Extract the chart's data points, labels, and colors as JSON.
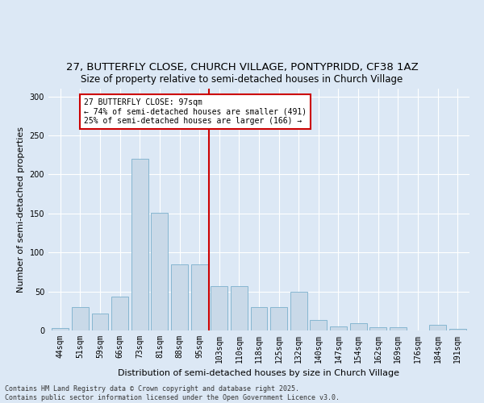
{
  "title": "27, BUTTERFLY CLOSE, CHURCH VILLAGE, PONTYPRIDD, CF38 1AZ",
  "subtitle": "Size of property relative to semi-detached houses in Church Village",
  "xlabel": "Distribution of semi-detached houses by size in Church Village",
  "ylabel": "Number of semi-detached properties",
  "categories": [
    "44sqm",
    "51sqm",
    "59sqm",
    "66sqm",
    "73sqm",
    "81sqm",
    "88sqm",
    "95sqm",
    "103sqm",
    "110sqm",
    "118sqm",
    "125sqm",
    "132sqm",
    "140sqm",
    "147sqm",
    "154sqm",
    "162sqm",
    "169sqm",
    "176sqm",
    "184sqm",
    "191sqm"
  ],
  "values": [
    3,
    30,
    22,
    43,
    220,
    151,
    85,
    85,
    57,
    57,
    30,
    30,
    50,
    13,
    5,
    9,
    4,
    4,
    0,
    7,
    2
  ],
  "bar_color": "#c9d9e8",
  "bar_edge_color": "#7ab0cc",
  "marker_line_color": "#cc0000",
  "marker_label": "27 BUTTERFLY CLOSE: 97sqm",
  "annotation_line1": "← 74% of semi-detached houses are smaller (491)",
  "annotation_line2": "25% of semi-detached houses are larger (166) →",
  "annotation_box_color": "#ffffff",
  "annotation_box_edge": "#cc0000",
  "footer": "Contains HM Land Registry data © Crown copyright and database right 2025.\nContains public sector information licensed under the Open Government Licence v3.0.",
  "bg_color": "#dce8f5",
  "plot_bg_color": "#dce8f5",
  "ylim": [
    0,
    310
  ],
  "yticks": [
    0,
    50,
    100,
    150,
    200,
    250,
    300
  ],
  "title_fontsize": 9.5,
  "subtitle_fontsize": 8.5,
  "xlabel_fontsize": 8,
  "ylabel_fontsize": 8,
  "tick_fontsize": 7,
  "footer_fontsize": 6
}
